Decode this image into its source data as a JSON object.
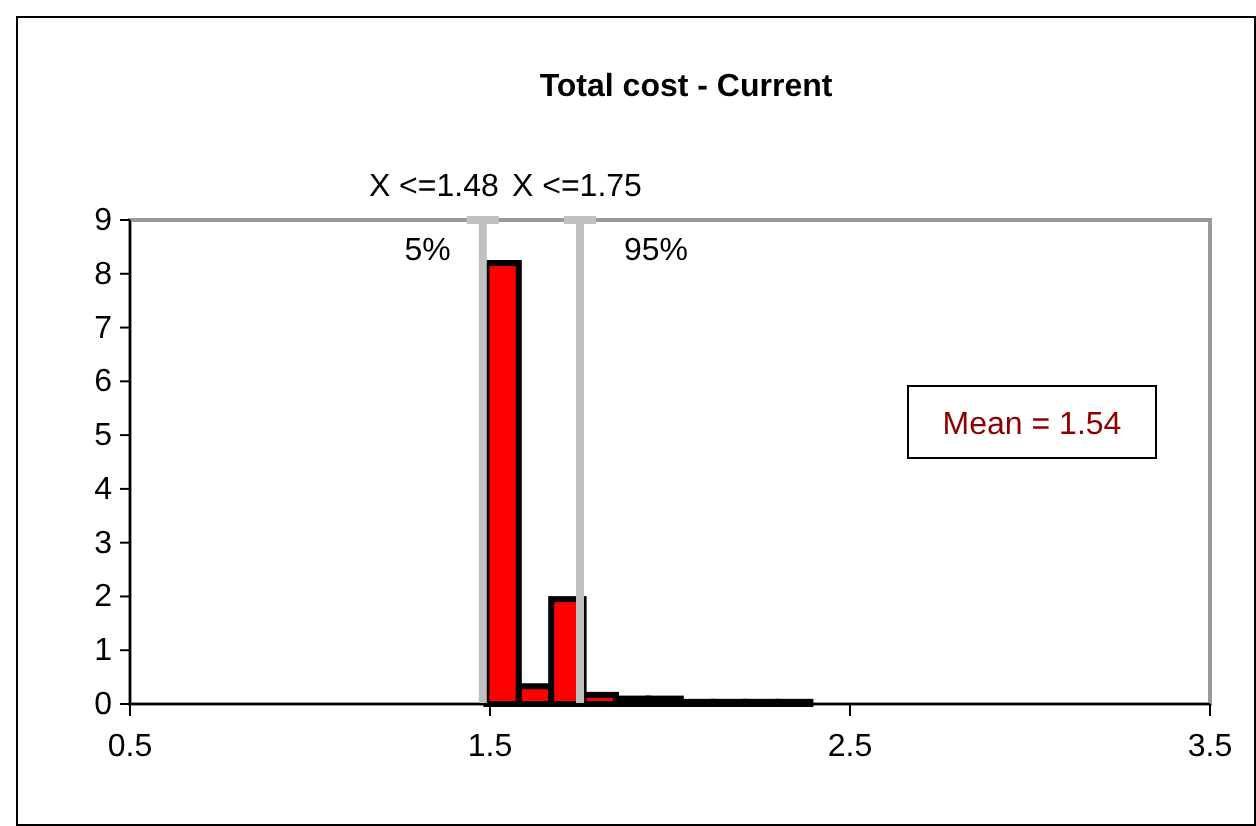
{
  "chart_data": {
    "type": "histogram",
    "title": "Total cost - Current",
    "bins": [
      1.49,
      1.58,
      1.67,
      1.76,
      1.85,
      1.94,
      2.03,
      2.12,
      2.21,
      2.3,
      2.39
    ],
    "values": [
      8.2,
      0.33,
      1.95,
      0.17,
      0.1,
      0.1,
      0.04,
      0.04,
      0.04,
      0.04
    ],
    "color": "#ff0000",
    "xlim": [
      0.5,
      3.5
    ],
    "xticks": [
      0.5,
      1.5,
      2.5,
      3.5
    ],
    "ylim": [
      0,
      9
    ],
    "yticks": [
      0,
      1,
      2,
      3,
      4,
      5,
      6,
      7,
      8,
      9
    ],
    "grid": false,
    "ref_lines": [
      {
        "axis": "x",
        "value": 1.48,
        "label": "X <=1.48",
        "color": "#c0c0c0"
      },
      {
        "axis": "x",
        "value": 1.75,
        "label": "X <=1.75",
        "color": "#c0c0c0"
      }
    ],
    "annotations": [
      {
        "text": "5%",
        "x": 1.48,
        "y": 9
      },
      {
        "text": "95%",
        "x": 1.75,
        "y": 9
      },
      "Mean = 1.54"
    ]
  }
}
